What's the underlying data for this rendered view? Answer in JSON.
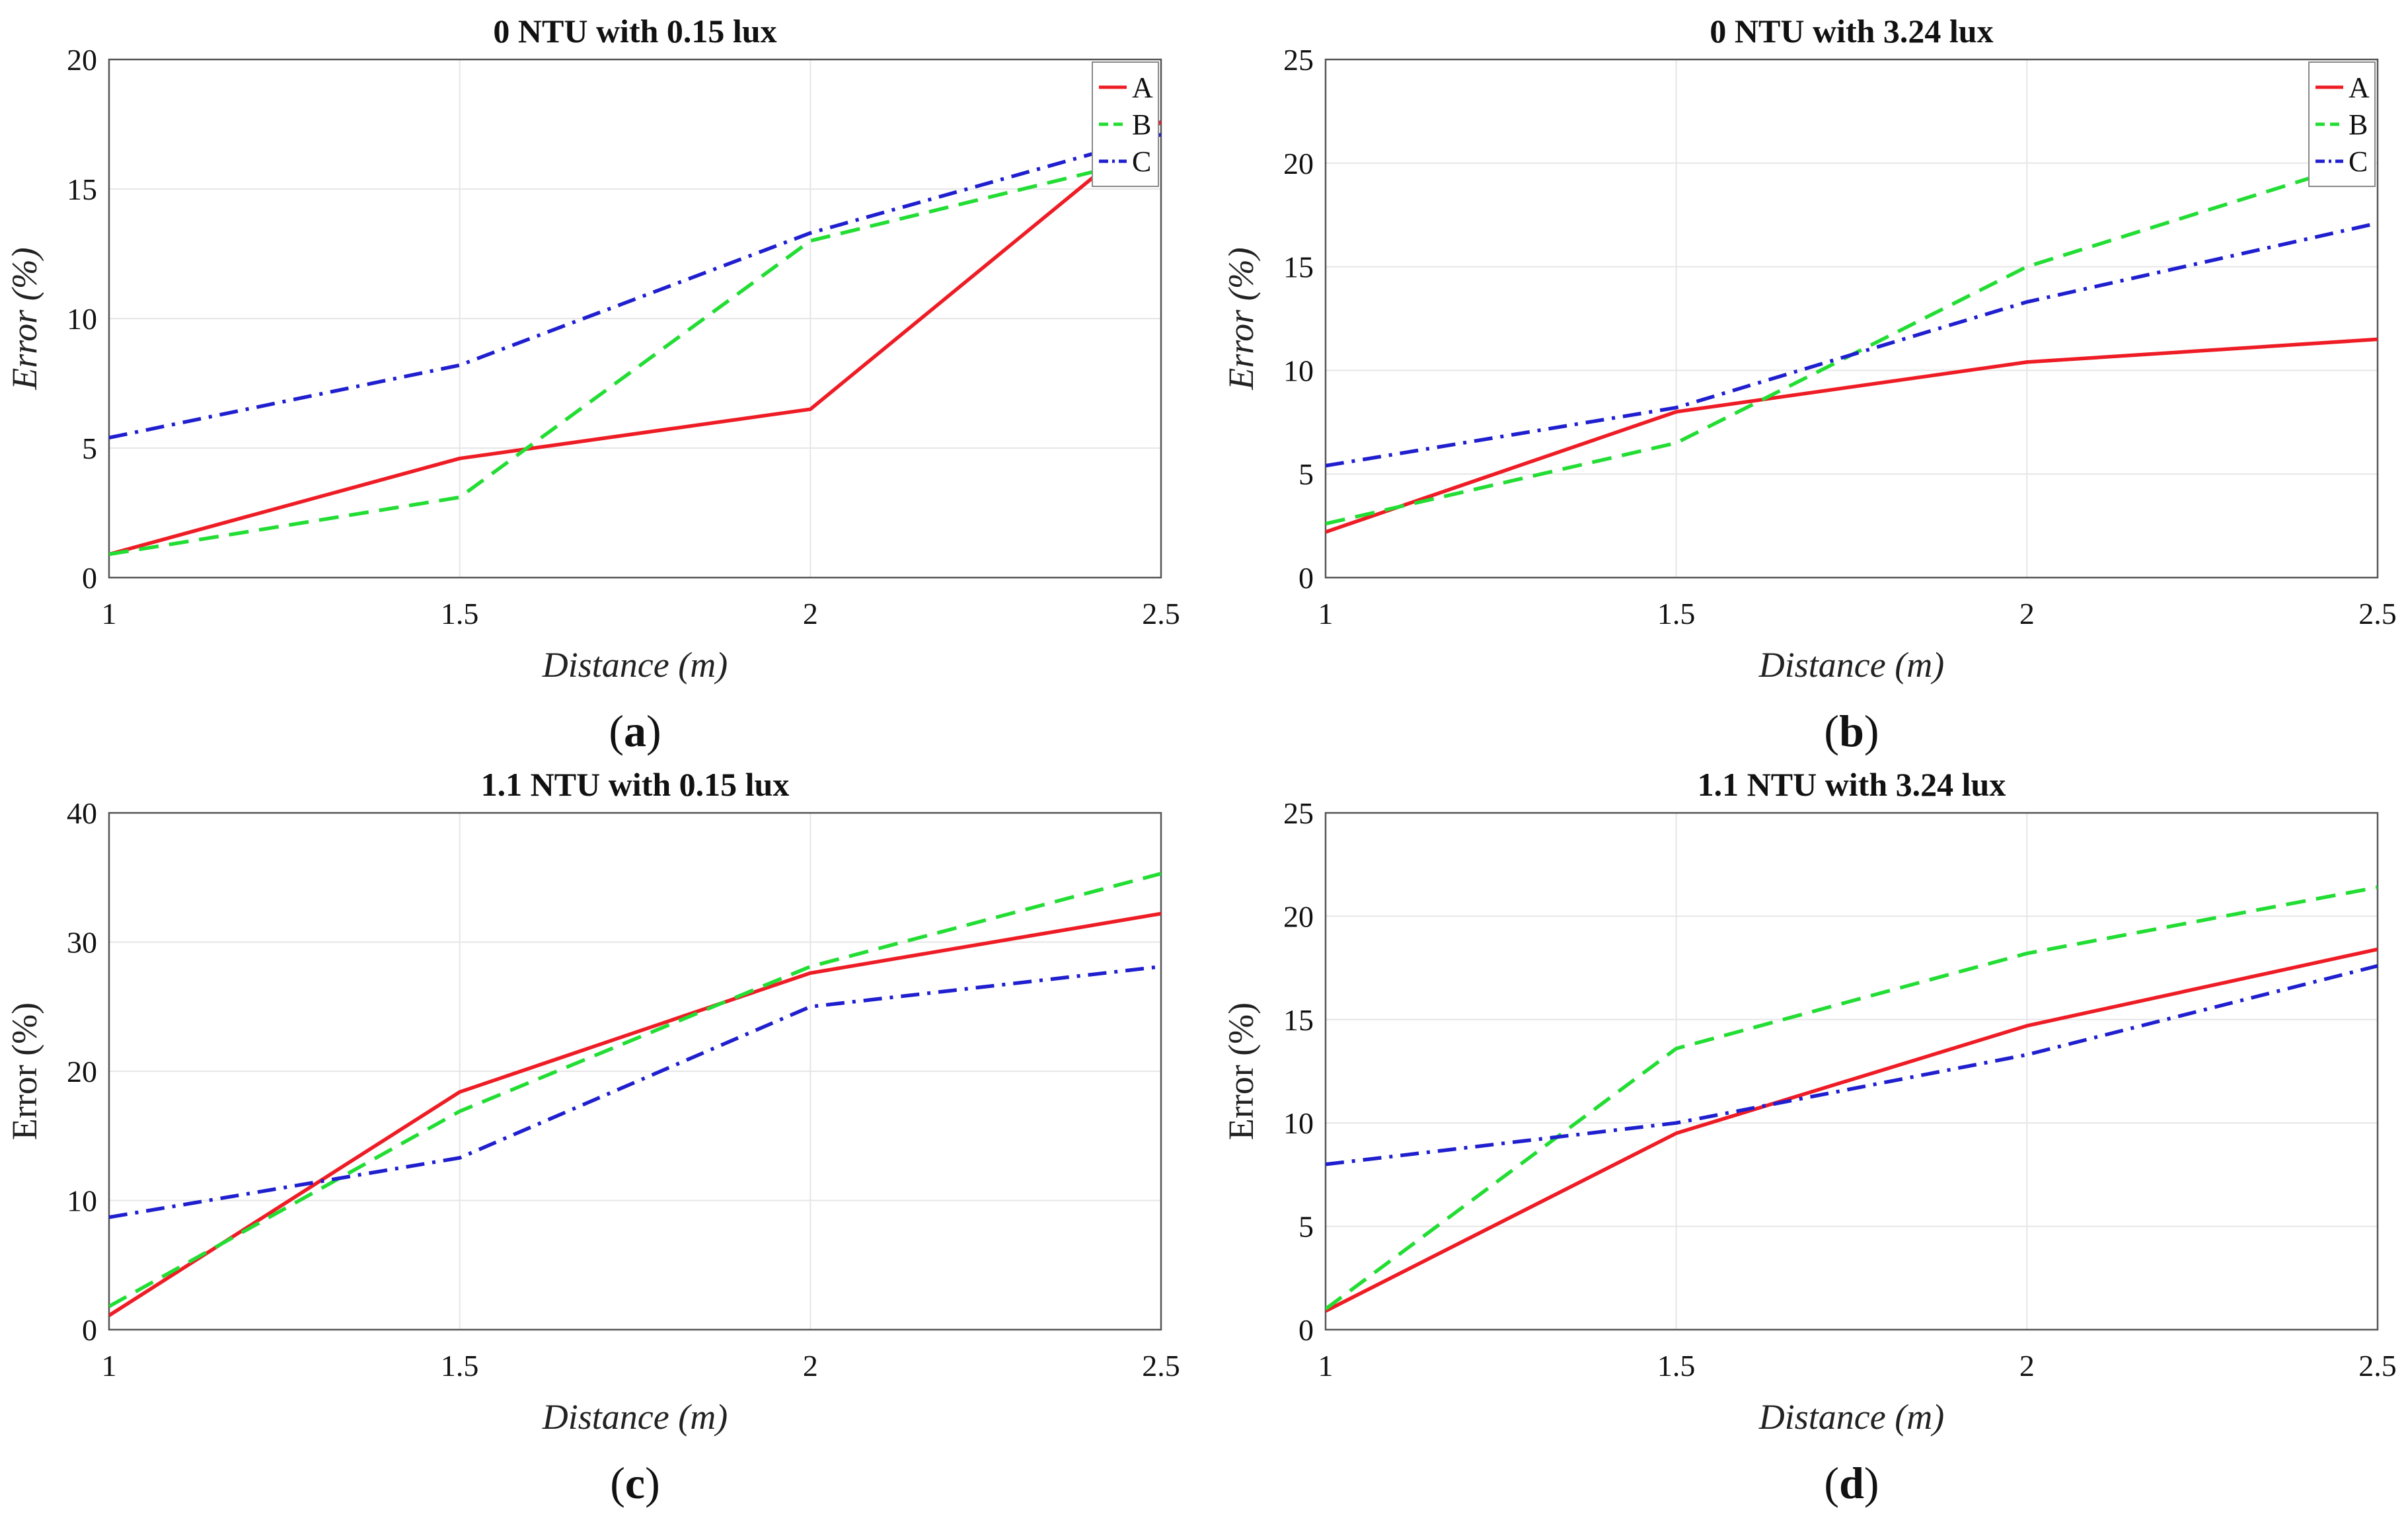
{
  "chart_data": [
    {
      "type": "line",
      "panel_label": "a",
      "title": "0 NTU with 0.15 lux",
      "xlabel": "Distance (m)",
      "ylabel": "Error (%)",
      "ylabel_italic": true,
      "x": [
        1,
        1.5,
        2,
        2.5
      ],
      "xlim": [
        1,
        2.5
      ],
      "xticks": [
        "1",
        "1.5",
        "2",
        "2.5"
      ],
      "ylim": [
        0,
        20
      ],
      "yticks": [
        "0",
        "5",
        "10",
        "15",
        "20"
      ],
      "grid": true,
      "legend": "top-right",
      "series": [
        {
          "name": "A",
          "color": "#ee1c25",
          "style": "solid",
          "values": [
            0.9,
            4.6,
            6.5,
            17.6
          ]
        },
        {
          "name": "B",
          "color": "#22dd33",
          "style": "dashed",
          "values": [
            0.9,
            3.1,
            13.0,
            16.3
          ]
        },
        {
          "name": "C",
          "color": "#1f1fcf",
          "style": "dashdot",
          "values": [
            5.4,
            8.2,
            13.3,
            17.1
          ]
        }
      ]
    },
    {
      "type": "line",
      "panel_label": "b",
      "title": "0 NTU with 3.24 lux",
      "xlabel": "Distance (m)",
      "ylabel": "Error (%)",
      "ylabel_italic": true,
      "x": [
        1,
        1.5,
        2,
        2.5
      ],
      "xlim": [
        1,
        2.5
      ],
      "xticks": [
        "1",
        "1.5",
        "2",
        "2.5"
      ],
      "ylim": [
        0,
        25
      ],
      "yticks": [
        "0",
        "5",
        "10",
        "15",
        "20",
        "25"
      ],
      "grid": true,
      "legend": "top-right",
      "series": [
        {
          "name": "A",
          "color": "#ee1c25",
          "style": "solid",
          "values": [
            2.2,
            8.0,
            10.4,
            11.5
          ]
        },
        {
          "name": "B",
          "color": "#22dd33",
          "style": "dashed",
          "values": [
            2.6,
            6.5,
            15.0,
            20.3
          ]
        },
        {
          "name": "C",
          "color": "#1f1fcf",
          "style": "dashdot",
          "values": [
            5.4,
            8.2,
            13.3,
            17.1
          ]
        }
      ]
    },
    {
      "type": "line",
      "panel_label": "c",
      "title": "1.1 NTU with 0.15 lux",
      "xlabel": "Distance (m)",
      "ylabel": "Error (%)",
      "ylabel_italic": false,
      "x": [
        1,
        1.5,
        2,
        2.5
      ],
      "xlim": [
        1,
        2.5
      ],
      "xticks": [
        "1",
        "1.5",
        "2",
        "2.5"
      ],
      "ylim": [
        0,
        40
      ],
      "yticks": [
        "0",
        "10",
        "20",
        "30",
        "40"
      ],
      "grid": true,
      "legend": "none",
      "series": [
        {
          "color": "#ee1c25",
          "style": "solid",
          "values": [
            1.1,
            18.4,
            27.6,
            32.2
          ]
        },
        {
          "color": "#22dd33",
          "style": "dashed",
          "values": [
            1.8,
            16.9,
            28.1,
            35.3
          ]
        },
        {
          "color": "#1f1fcf",
          "style": "dashdot",
          "values": [
            8.7,
            13.3,
            25.0,
            28.1
          ]
        }
      ]
    },
    {
      "type": "line",
      "panel_label": "d",
      "title": "1.1 NTU with 3.24 lux",
      "xlabel": "Distance (m)",
      "ylabel": "Error (%)",
      "ylabel_italic": false,
      "x": [
        1,
        1.5,
        2,
        2.5
      ],
      "xlim": [
        1,
        2.5
      ],
      "xticks": [
        "1",
        "1.5",
        "2",
        "2.5"
      ],
      "ylim": [
        0,
        25
      ],
      "yticks": [
        "0",
        "5",
        "10",
        "15",
        "20",
        "25"
      ],
      "grid": true,
      "legend": "none",
      "series": [
        {
          "color": "#ee1c25",
          "style": "solid",
          "values": [
            0.9,
            9.5,
            14.7,
            18.4
          ]
        },
        {
          "color": "#22dd33",
          "style": "dashed",
          "values": [
            1.0,
            13.6,
            18.2,
            21.4
          ]
        },
        {
          "color": "#1f1fcf",
          "style": "dashdot",
          "values": [
            8.0,
            10.0,
            13.3,
            17.6
          ]
        }
      ]
    }
  ]
}
